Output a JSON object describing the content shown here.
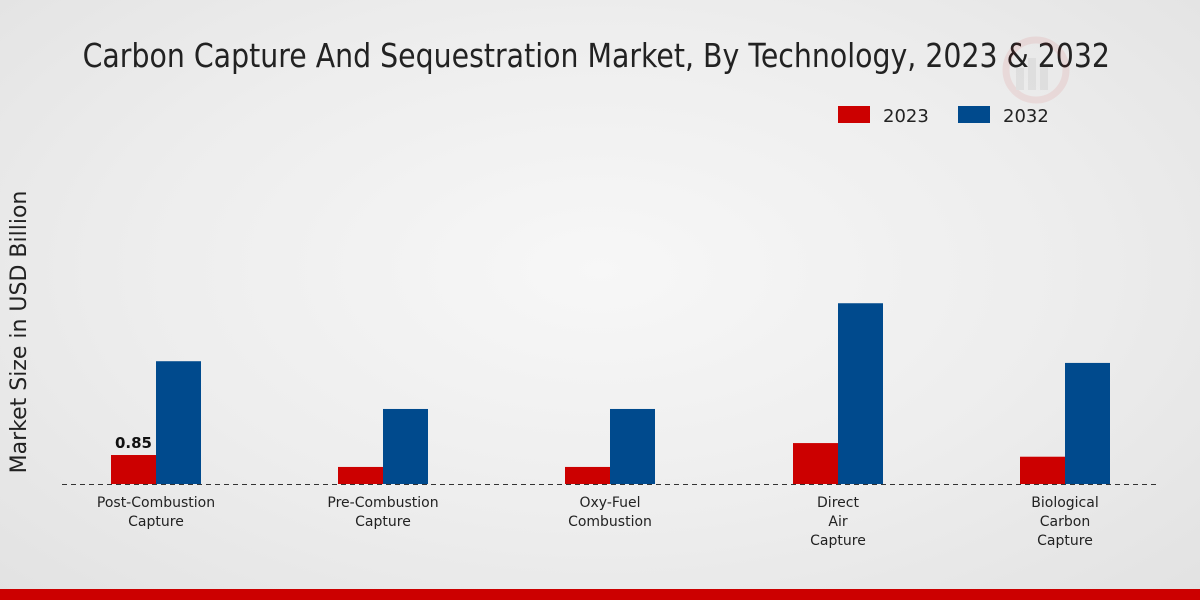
{
  "chart_data": {
    "type": "bar",
    "title": "Carbon Capture And Sequestration Market, By Technology, 2023 & 2032",
    "xlabel": "",
    "ylabel": "Market Size in USD Billion",
    "categories": [
      [
        "Post-Combustion",
        "Capture"
      ],
      [
        "Pre-Combustion",
        "Capture"
      ],
      [
        "Oxy-Fuel",
        "Combustion"
      ],
      [
        "Direct",
        "Air",
        "Capture"
      ],
      [
        "Biological",
        "Carbon",
        "Capture"
      ]
    ],
    "series": [
      {
        "name": "2023",
        "color": "#cc0000",
        "values": [
          0.85,
          0.5,
          0.5,
          1.2,
          0.8
        ]
      },
      {
        "name": "2032",
        "color": "#004a8d",
        "values": [
          3.6,
          2.2,
          2.2,
          5.3,
          3.55
        ]
      }
    ],
    "data_labels": [
      {
        "series": 0,
        "index": 0,
        "text": "0.85"
      }
    ],
    "ylim": [
      0,
      9.5
    ],
    "grid": false,
    "legend": "top-right"
  },
  "theme": {
    "footer_color": "#cc0000",
    "baseline_color": "#333333"
  }
}
